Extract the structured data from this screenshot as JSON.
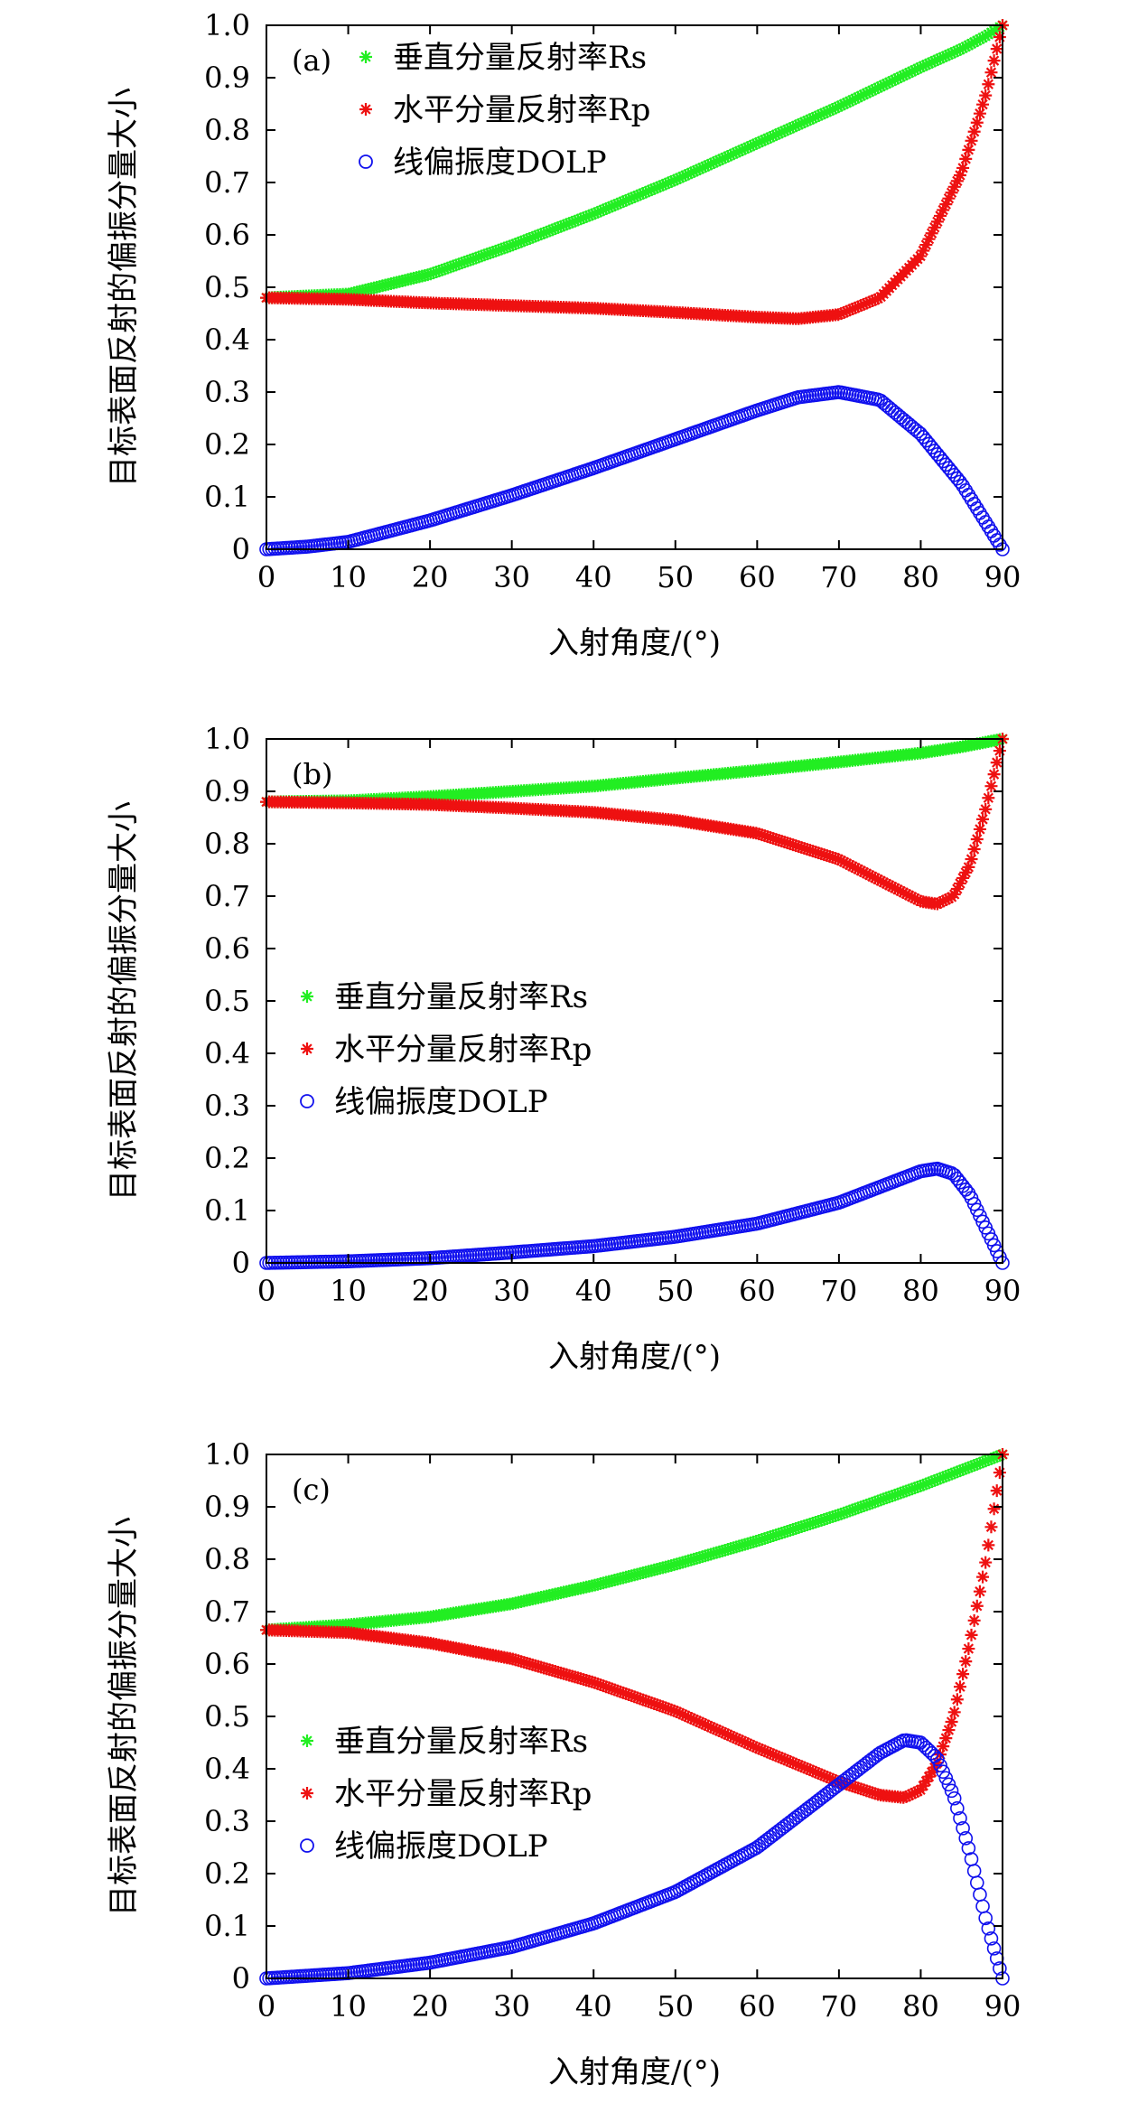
{
  "chart_data": [
    {
      "type": "scatter",
      "panel_label": "(a)",
      "xlabel": "入射角度/(°)",
      "ylabel": "目标表面反射的偏振分量大小",
      "xlim": [
        0,
        90
      ],
      "ylim": [
        0,
        1.0
      ],
      "x_ticks": [
        "0",
        "10",
        "20",
        "30",
        "40",
        "50",
        "60",
        "70",
        "80",
        "90"
      ],
      "y_ticks": [
        "0",
        "0.1",
        "0.2",
        "0.3",
        "0.4",
        "0.5",
        "0.6",
        "0.7",
        "0.8",
        "0.9",
        "1.0"
      ],
      "legend_position": "top-left",
      "series": [
        {
          "name": "垂直分量反射率Rs",
          "marker": "star",
          "color": "#22ee22",
          "x": [
            0,
            10,
            20,
            30,
            40,
            50,
            60,
            70,
            80,
            85,
            88,
            90
          ],
          "y": [
            0.48,
            0.487,
            0.525,
            0.58,
            0.64,
            0.705,
            0.775,
            0.845,
            0.92,
            0.955,
            0.98,
            1.0
          ]
        },
        {
          "name": "水平分量反射率Rp",
          "marker": "star",
          "color": "#ee1111",
          "x": [
            0,
            10,
            20,
            30,
            40,
            50,
            60,
            65,
            70,
            75,
            80,
            85,
            88,
            90
          ],
          "y": [
            0.48,
            0.477,
            0.47,
            0.465,
            0.46,
            0.452,
            0.443,
            0.44,
            0.448,
            0.48,
            0.56,
            0.72,
            0.87,
            1.0
          ]
        },
        {
          "name": "线偏振度DOLP",
          "marker": "circle",
          "color": "#1111ee",
          "x": [
            0,
            5,
            10,
            20,
            30,
            40,
            50,
            60,
            65,
            70,
            75,
            80,
            85,
            88,
            90
          ],
          "y": [
            0,
            0.005,
            0.014,
            0.055,
            0.103,
            0.155,
            0.21,
            0.265,
            0.29,
            0.3,
            0.285,
            0.22,
            0.125,
            0.05,
            0
          ]
        }
      ]
    },
    {
      "type": "scatter",
      "panel_label": "(b)",
      "xlabel": "入射角度/(°)",
      "ylabel": "目标表面反射的偏振分量大小",
      "xlim": [
        0,
        90
      ],
      "ylim": [
        0,
        1.0
      ],
      "x_ticks": [
        "0",
        "10",
        "20",
        "30",
        "40",
        "50",
        "60",
        "70",
        "80",
        "90"
      ],
      "y_ticks": [
        "0",
        "0.1",
        "0.2",
        "0.3",
        "0.4",
        "0.5",
        "0.6",
        "0.7",
        "0.8",
        "0.9",
        "1.0"
      ],
      "legend_position": "center-left",
      "series": [
        {
          "name": "垂直分量反射率Rs",
          "marker": "star",
          "color": "#22ee22",
          "x": [
            0,
            10,
            20,
            30,
            40,
            50,
            60,
            70,
            80,
            85,
            90
          ],
          "y": [
            0.88,
            0.882,
            0.89,
            0.9,
            0.91,
            0.925,
            0.94,
            0.956,
            0.973,
            0.985,
            1.0
          ]
        },
        {
          "name": "水平分量反射率Rp",
          "marker": "star",
          "color": "#ee1111",
          "x": [
            0,
            10,
            20,
            30,
            40,
            50,
            60,
            70,
            75,
            80,
            82,
            84,
            86,
            88,
            90
          ],
          "y": [
            0.88,
            0.878,
            0.875,
            0.868,
            0.86,
            0.845,
            0.82,
            0.77,
            0.73,
            0.69,
            0.685,
            0.7,
            0.76,
            0.87,
            1.0
          ]
        },
        {
          "name": "线偏振度DOLP",
          "marker": "circle",
          "color": "#1111ee",
          "x": [
            0,
            10,
            20,
            30,
            40,
            50,
            60,
            70,
            75,
            80,
            82,
            84,
            86,
            88,
            90
          ],
          "y": [
            0,
            0.003,
            0.009,
            0.02,
            0.032,
            0.05,
            0.075,
            0.115,
            0.145,
            0.175,
            0.18,
            0.17,
            0.13,
            0.065,
            0
          ]
        }
      ]
    },
    {
      "type": "scatter",
      "panel_label": "(c)",
      "xlabel": "入射角度/(°)",
      "ylabel": "目标表面反射的偏振分量大小",
      "xlim": [
        0,
        90
      ],
      "ylim": [
        0,
        1.0
      ],
      "x_ticks": [
        "0",
        "10",
        "20",
        "30",
        "40",
        "50",
        "60",
        "70",
        "80",
        "90"
      ],
      "y_ticks": [
        "0",
        "0.1",
        "0.2",
        "0.3",
        "0.4",
        "0.5",
        "0.6",
        "0.7",
        "0.8",
        "0.9",
        "1.0"
      ],
      "legend_position": "center-left",
      "series": [
        {
          "name": "垂直分量反射率Rs",
          "marker": "star",
          "color": "#22ee22",
          "x": [
            0,
            10,
            20,
            30,
            40,
            50,
            60,
            70,
            80,
            85,
            90
          ],
          "y": [
            0.665,
            0.675,
            0.69,
            0.715,
            0.75,
            0.79,
            0.835,
            0.885,
            0.94,
            0.97,
            1.0
          ]
        },
        {
          "name": "水平分量反射率Rp",
          "marker": "star",
          "color": "#ee1111",
          "x": [
            0,
            10,
            20,
            30,
            40,
            50,
            60,
            70,
            75,
            78,
            80,
            82,
            84,
            86,
            88,
            90
          ],
          "y": [
            0.665,
            0.66,
            0.64,
            0.61,
            0.565,
            0.51,
            0.44,
            0.375,
            0.35,
            0.345,
            0.36,
            0.41,
            0.5,
            0.64,
            0.8,
            1.0
          ]
        },
        {
          "name": "线偏振度DOLP",
          "marker": "circle",
          "color": "#1111ee",
          "x": [
            0,
            10,
            20,
            30,
            40,
            50,
            60,
            70,
            75,
            78,
            80,
            82,
            84,
            86,
            88,
            90
          ],
          "y": [
            0,
            0.01,
            0.03,
            0.06,
            0.105,
            0.165,
            0.25,
            0.37,
            0.43,
            0.455,
            0.45,
            0.42,
            0.35,
            0.24,
            0.11,
            0
          ]
        }
      ]
    }
  ]
}
